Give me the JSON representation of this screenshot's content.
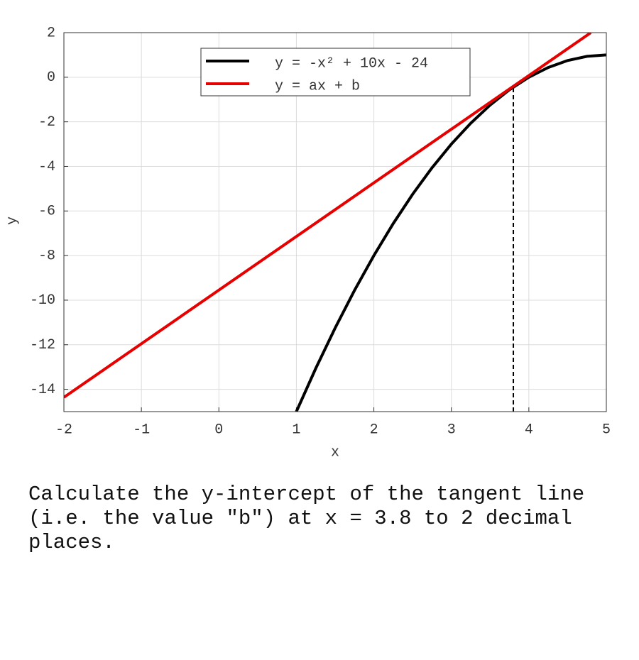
{
  "chart_data": {
    "type": "line",
    "xlabel": "x",
    "ylabel": "y",
    "xlim": [
      -2,
      5
    ],
    "ylim": [
      -15,
      2
    ],
    "xticks": [
      -2,
      -1,
      0,
      1,
      2,
      3,
      4,
      5
    ],
    "yticks": [
      -14,
      -12,
      -10,
      -8,
      -6,
      -4,
      -2,
      0,
      2
    ],
    "grid": true,
    "legend": "upper center",
    "series": [
      {
        "name": "y = -x² + 10x - 24",
        "color": "#000000",
        "x": [
          1,
          1.25,
          1.5,
          1.75,
          2,
          2.25,
          2.5,
          2.75,
          3,
          3.25,
          3.5,
          3.75,
          4,
          4.25,
          4.5,
          4.75,
          5
        ],
        "values": [
          -15,
          -13.0625,
          -11.25,
          -9.5625,
          -8,
          -6.5625,
          -5.25,
          -4.0625,
          -3,
          -2.0625,
          -1.25,
          -0.5625,
          0,
          0.4375,
          0.75,
          0.9375,
          1
        ]
      },
      {
        "name": "y = ax + b",
        "color": "#e60000",
        "x": [
          -2,
          4.8
        ],
        "values": [
          -14.36,
          2
        ]
      }
    ],
    "marker_line": {
      "x": [
        3.8,
        3.8
      ],
      "values": [
        -15,
        -0.44
      ],
      "color": "#000000"
    }
  },
  "question": "Calculate the y-intercept of the tangent line (i.e. the value \"b\") at x = 3.8 to 2 decimal places."
}
